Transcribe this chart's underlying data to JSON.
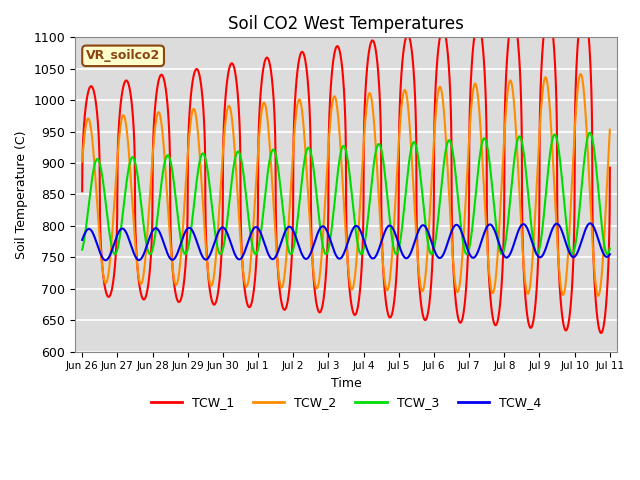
{
  "title": "Soil CO2 West Temperatures",
  "ylabel": "Soil Temperature (C)",
  "xlabel": "Time",
  "ylim": [
    600,
    1100
  ],
  "bg_color": "#DCDCDC",
  "grid_color": "white",
  "annotation_text": "VR_soilco2",
  "annotation_bg": "#FFFFCC",
  "annotation_border": "#8B4513",
  "series_names": [
    "TCW_1",
    "TCW_2",
    "TCW_3",
    "TCW_4"
  ],
  "series": {
    "TCW_1": {
      "color": "#FF0000",
      "base": 855,
      "amplitude": 165,
      "phase": 0.0,
      "period": 1.0,
      "trend_base": 2.5,
      "trend_amp": 0.04,
      "sharpness": 2.5
    },
    "TCW_2": {
      "color": "#FF8C00",
      "base": 840,
      "amplitude": 130,
      "phase": 0.08,
      "period": 1.0,
      "trend_base": 1.8,
      "trend_amp": 0.025,
      "sharpness": 1.0
    },
    "TCW_3": {
      "color": "#00DD00",
      "base": 830,
      "amplitude": 75,
      "phase": -0.18,
      "period": 1.0,
      "trend_base": 1.5,
      "trend_amp": 0.02,
      "sharpness": 1.0
    },
    "TCW_4": {
      "color": "#0000EE",
      "base": 770,
      "amplitude": 25,
      "phase": 0.05,
      "period": 0.95,
      "trend_base": 0.5,
      "trend_amp": 0.005,
      "sharpness": 1.0
    }
  },
  "xtick_labels": [
    "Jun 26",
    "Jun 27",
    "Jun 28",
    "Jun 29",
    "Jun 30",
    "Jul 1",
    "Jul 2",
    "Jul 3",
    "Jul 4",
    "Jul 5",
    "Jul 6",
    "Jul 7",
    "Jul 8",
    "Jul 9",
    "Jul 10",
    "Jul 11"
  ],
  "xtick_positions": [
    0,
    1,
    2,
    3,
    4,
    5,
    6,
    7,
    8,
    9,
    10,
    11,
    12,
    13,
    14,
    15
  ]
}
